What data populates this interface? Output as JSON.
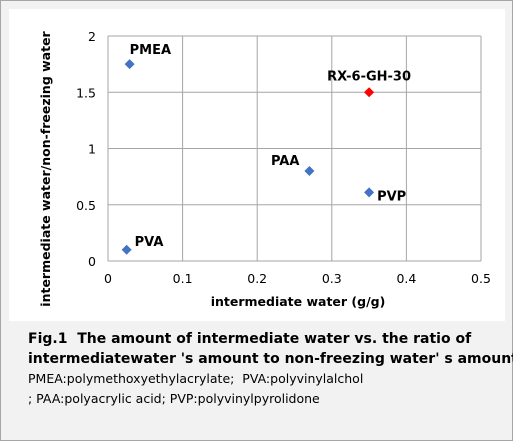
{
  "chart_data": {
    "type": "scatter",
    "title": "",
    "xlabel": "intermediate water  (g/g)",
    "ylabel": "intermediate water/non-freezing water",
    "xlim": [
      0,
      0.5
    ],
    "ylim": [
      0,
      2
    ],
    "x_ticks": [
      "0",
      "0.1",
      "0.2",
      "0.3",
      "0.4",
      "0.5"
    ],
    "y_ticks": [
      "0",
      "0.5",
      "1",
      "1.5",
      "2"
    ],
    "grid": true,
    "points": [
      {
        "label": "PMEA",
        "x": 0.029,
        "y": 1.75,
        "color": "#4472c4"
      },
      {
        "label": "PAA",
        "x": 0.27,
        "y": 0.8,
        "color": "#4472c4"
      },
      {
        "label": "PVP",
        "x": 0.35,
        "y": 0.61,
        "color": "#4472c4"
      },
      {
        "label": "PVA",
        "x": 0.025,
        "y": 0.1,
        "color": "#4472c4"
      },
      {
        "label": "RX-6-GH-30",
        "x": 0.35,
        "y": 1.5,
        "color": "#ff0000"
      }
    ]
  },
  "caption": {
    "line1": "Fig.1  The amount of intermediate water vs. the ratio of",
    "line2": "intermediatewater 's amount to non-freezing water' s amount",
    "note1": "PMEA:polymethoxyethylacrylate;  PVA:polyvinylalchol",
    "note2": "; PAA:polyacrylic acid; PVP:polyvinylpyrolidone"
  }
}
